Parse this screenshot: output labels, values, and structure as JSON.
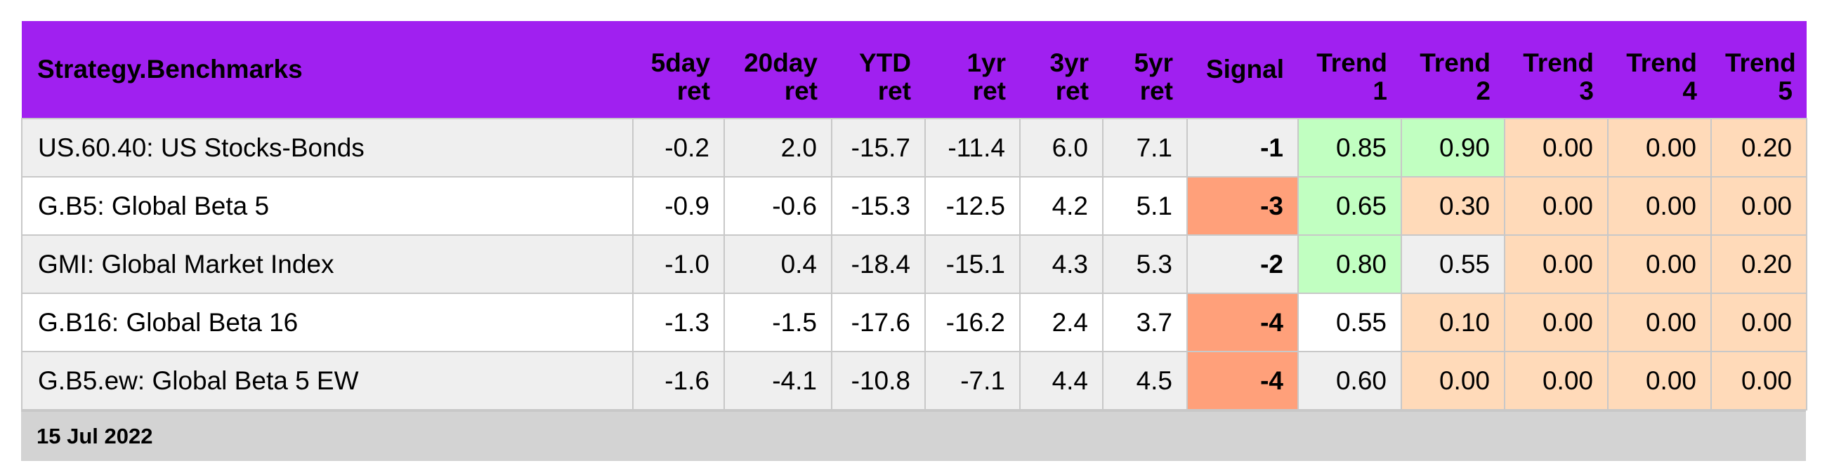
{
  "table": {
    "headers": [
      "Strategy.Benchmarks",
      [
        "5day",
        "ret"
      ],
      [
        "20day",
        "ret"
      ],
      [
        "YTD",
        "ret"
      ],
      [
        "1yr",
        "ret"
      ],
      [
        "3yr",
        "ret"
      ],
      [
        "5yr",
        "ret"
      ],
      [
        "Signal"
      ],
      [
        "Trend",
        "1"
      ],
      [
        "Trend",
        "2"
      ],
      [
        "Trend",
        "3"
      ],
      [
        "Trend",
        "4"
      ],
      [
        "Trend",
        "5"
      ]
    ],
    "rows": [
      {
        "name": "US.60.40: US Stocks-Bonds",
        "ret_5day": "-0.2",
        "ret_20day": "2.0",
        "ret_ytd": "-15.7",
        "ret_1yr": "-11.4",
        "ret_3yr": "6.0",
        "ret_5yr": "7.1",
        "signal": "-1",
        "trend1": "0.85",
        "trend2": "0.90",
        "trend3": "0.00",
        "trend4": "0.00",
        "trend5": "0.20"
      },
      {
        "name": "G.B5: Global Beta 5",
        "ret_5day": "-0.9",
        "ret_20day": "-0.6",
        "ret_ytd": "-15.3",
        "ret_1yr": "-12.5",
        "ret_3yr": "4.2",
        "ret_5yr": "5.1",
        "signal": "-3",
        "trend1": "0.65",
        "trend2": "0.30",
        "trend3": "0.00",
        "trend4": "0.00",
        "trend5": "0.00"
      },
      {
        "name": "GMI: Global Market Index",
        "ret_5day": "-1.0",
        "ret_20day": "0.4",
        "ret_ytd": "-18.4",
        "ret_1yr": "-15.1",
        "ret_3yr": "4.3",
        "ret_5yr": "5.3",
        "signal": "-2",
        "trend1": "0.80",
        "trend2": "0.55",
        "trend3": "0.00",
        "trend4": "0.00",
        "trend5": "0.20"
      },
      {
        "name": "G.B16: Global Beta 16",
        "ret_5day": "-1.3",
        "ret_20day": "-1.5",
        "ret_ytd": "-17.6",
        "ret_1yr": "-16.2",
        "ret_3yr": "2.4",
        "ret_5yr": "3.7",
        "signal": "-4",
        "trend1": "0.55",
        "trend2": "0.10",
        "trend3": "0.00",
        "trend4": "0.00",
        "trend5": "0.00"
      },
      {
        "name": "G.B5.ew: Global Beta 5 EW",
        "ret_5day": "-1.6",
        "ret_20day": "-4.1",
        "ret_ytd": "-10.8",
        "ret_1yr": "-7.1",
        "ret_3yr": "4.4",
        "ret_5yr": "4.5",
        "signal": "-4",
        "trend1": "0.60",
        "trend2": "0.00",
        "trend3": "0.00",
        "trend4": "0.00",
        "trend5": "0.00"
      }
    ]
  },
  "footer": {
    "date": "15 Jul 2022"
  },
  "colors": {
    "header_bg": "#a020f0",
    "negative_text": "#ff0000",
    "signal_weak": "#ffa07a",
    "trend_strong": "#c1ffc1",
    "trend_weak": "#ffdab9",
    "row_alt": "#efefef",
    "footer_bg": "#d3d3d3"
  }
}
